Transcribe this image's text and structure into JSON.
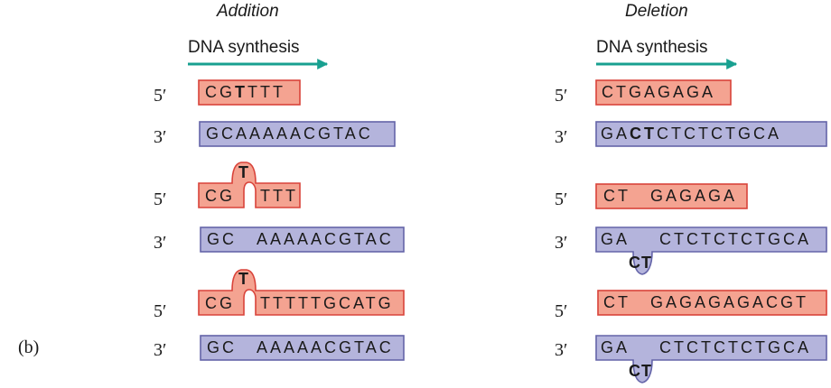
{
  "headings": {
    "addition": "Addition",
    "deletion": "Deletion"
  },
  "synthesis_label": "DNA synthesis",
  "panel_label": "(b)",
  "colors": {
    "new_strand_fill": "#f4a391",
    "new_strand_border": "#d9433a",
    "template_fill": "#b4b4dc",
    "template_border": "#6464a8",
    "arrow": "#18a090"
  },
  "addition": {
    "rows": [
      {
        "end": "5′",
        "strand": "new",
        "pre": "CG",
        "bold": "T",
        "post": "TTT"
      },
      {
        "end": "3′",
        "strand": "template",
        "text": "GCAAAAACGTAC"
      },
      {
        "end": "5′",
        "strand": "new",
        "left": "CG",
        "right": "TTT",
        "loop": "T"
      },
      {
        "end": "3′",
        "strand": "template",
        "left": "GC",
        "right": "AAAAACGTAC"
      },
      {
        "end": "5′",
        "strand": "new",
        "left": "CG",
        "right": "TTTTTGCATG",
        "loop": "T"
      },
      {
        "end": "3′",
        "strand": "template",
        "left": "GC",
        "right": "AAAAACGTAC"
      }
    ]
  },
  "deletion": {
    "rows": [
      {
        "end": "5′",
        "strand": "new",
        "text": "CTGAGAGA"
      },
      {
        "end": "3′",
        "strand": "template",
        "pre": "GA",
        "bold": "CT",
        "post": "CTCTCTGCA"
      },
      {
        "end": "5′",
        "strand": "new",
        "left": "CT",
        "right": "GAGAGA"
      },
      {
        "end": "3′",
        "strand": "template",
        "left": "GA",
        "right": "CTCTCTCTGCA",
        "loop": "CT"
      },
      {
        "end": "5′",
        "strand": "new",
        "left": "CT",
        "right": "GAGAGAGACGT"
      },
      {
        "end": "3′",
        "strand": "template",
        "left": "GA",
        "right": "CTCTCTCTGCA",
        "loop": "CT"
      }
    ]
  }
}
